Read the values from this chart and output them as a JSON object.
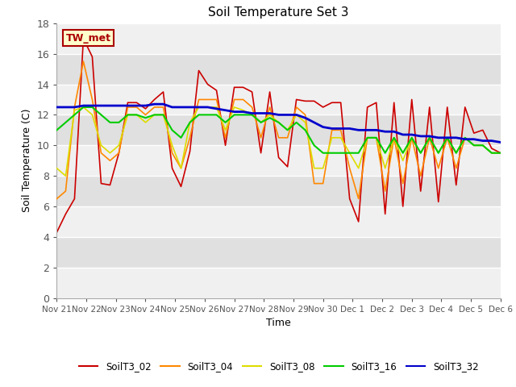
{
  "title": "Soil Temperature Set 3",
  "xlabel": "Time",
  "ylabel": "Soil Temperature (C)",
  "ylim": [
    0,
    18
  ],
  "yticks": [
    0,
    2,
    4,
    6,
    8,
    10,
    12,
    14,
    16,
    18
  ],
  "line_colors": [
    "#cc0000",
    "#ff8800",
    "#dddd00",
    "#00cc00",
    "#0000cc"
  ],
  "legend_entries": [
    "SoilT3_02",
    "SoilT3_04",
    "SoilT3_08",
    "SoilT3_16",
    "SoilT3_32"
  ],
  "annotation_text": "TW_met",
  "annotation_bg": "#ffffcc",
  "annotation_border": "#aa0000",
  "stripe_light": "#f0f0f0",
  "stripe_dark": "#e0e0e0",
  "x_labels": [
    "Nov 21",
    "Nov 22",
    "Nov 23",
    "Nov 24",
    "Nov 25",
    "Nov 26",
    "Nov 27",
    "Nov 28",
    "Nov 29",
    "Nov 30",
    "Dec 1",
    "Dec 2",
    "Dec 3",
    "Dec 4",
    "Dec 5",
    "Dec 6"
  ],
  "series": {
    "SoilT3_02": [
      4.3,
      5.5,
      6.5,
      17.0,
      15.8,
      7.5,
      7.4,
      9.5,
      12.8,
      12.8,
      12.4,
      13.0,
      13.5,
      8.5,
      7.3,
      9.6,
      14.9,
      14.0,
      13.6,
      10.0,
      13.8,
      13.8,
      13.5,
      9.5,
      13.5,
      9.2,
      8.6,
      13.0,
      12.9,
      12.9,
      12.5,
      12.8,
      12.8,
      6.5,
      5.0,
      12.5,
      12.8,
      5.5,
      12.8,
      6.0,
      13.0,
      7.0,
      12.5,
      6.3,
      12.5,
      7.4,
      12.5,
      10.8,
      11.0,
      9.8,
      9.5
    ],
    "SoilT3_04": [
      6.5,
      7.0,
      12.5,
      15.5,
      13.0,
      9.5,
      9.0,
      9.5,
      12.5,
      12.5,
      12.0,
      12.5,
      12.5,
      9.5,
      8.5,
      10.5,
      13.0,
      13.0,
      13.0,
      10.5,
      13.0,
      13.0,
      12.5,
      10.5,
      12.5,
      10.5,
      10.5,
      12.5,
      12.0,
      7.5,
      7.5,
      11.0,
      11.0,
      8.5,
      6.5,
      10.5,
      10.5,
      7.0,
      10.5,
      7.5,
      10.5,
      8.0,
      10.5,
      8.5,
      10.5,
      8.5,
      10.5,
      10.0,
      10.0,
      9.5,
      9.5
    ],
    "SoilT3_08": [
      8.5,
      8.0,
      12.3,
      12.5,
      12.0,
      10.0,
      9.5,
      10.0,
      12.0,
      12.0,
      11.5,
      12.0,
      12.0,
      10.0,
      8.5,
      11.5,
      12.5,
      12.5,
      12.5,
      11.0,
      12.5,
      12.3,
      12.0,
      11.5,
      12.0,
      11.5,
      11.0,
      12.0,
      11.5,
      8.5,
      8.5,
      10.5,
      10.5,
      9.5,
      8.5,
      10.5,
      10.5,
      8.5,
      10.5,
      9.0,
      10.5,
      9.5,
      10.5,
      9.5,
      10.5,
      9.5,
      10.5,
      10.0,
      10.0,
      9.5,
      9.5
    ],
    "SoilT3_16": [
      11.0,
      11.5,
      12.0,
      12.5,
      12.5,
      12.0,
      11.5,
      11.5,
      12.0,
      12.0,
      11.8,
      12.0,
      12.0,
      11.0,
      10.5,
      11.5,
      12.0,
      12.0,
      12.0,
      11.5,
      12.0,
      12.0,
      12.0,
      11.5,
      11.8,
      11.5,
      11.0,
      11.5,
      11.0,
      10.0,
      9.5,
      9.5,
      9.5,
      9.5,
      9.5,
      10.5,
      10.5,
      9.5,
      10.5,
      9.5,
      10.5,
      9.5,
      10.5,
      9.5,
      10.5,
      9.5,
      10.5,
      10.0,
      10.0,
      9.5,
      9.5
    ],
    "SoilT3_32": [
      12.5,
      12.5,
      12.5,
      12.6,
      12.6,
      12.6,
      12.6,
      12.6,
      12.6,
      12.6,
      12.6,
      12.7,
      12.7,
      12.5,
      12.5,
      12.5,
      12.5,
      12.5,
      12.4,
      12.3,
      12.2,
      12.2,
      12.1,
      12.1,
      12.1,
      12.0,
      12.0,
      12.0,
      11.8,
      11.5,
      11.2,
      11.1,
      11.1,
      11.1,
      11.0,
      11.0,
      11.0,
      10.9,
      10.9,
      10.7,
      10.7,
      10.6,
      10.6,
      10.5,
      10.5,
      10.5,
      10.4,
      10.4,
      10.3,
      10.3,
      10.2
    ]
  }
}
